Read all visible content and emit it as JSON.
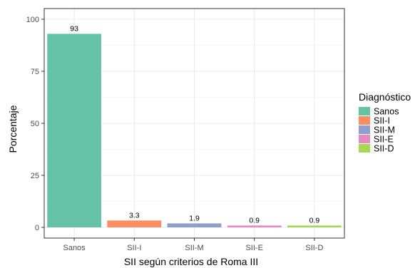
{
  "chart_data": {
    "type": "bar",
    "categories": [
      "Sanos",
      "SII-I",
      "SII-M",
      "SII-E",
      "SII-D"
    ],
    "values": [
      93,
      3.3,
      1.9,
      0.9,
      0.9
    ],
    "data_labels": [
      "93",
      "3.3",
      "1.9",
      "0.9",
      "0.9"
    ],
    "xlabel": "SII según criterios de Roma III",
    "ylabel": "Porcentaje",
    "ylim": [
      0,
      100
    ],
    "yticks": [
      0,
      25,
      50,
      75,
      100
    ],
    "grid": true,
    "colors": [
      "#66c2a5",
      "#fc8d62",
      "#8da0cb",
      "#e78ac3",
      "#a6d854"
    ],
    "legend": {
      "title": "Diagnóstico",
      "position": "right",
      "entries": [
        "Sanos",
        "SII-I",
        "SII-M",
        "SII-E",
        "SII-D"
      ]
    }
  }
}
